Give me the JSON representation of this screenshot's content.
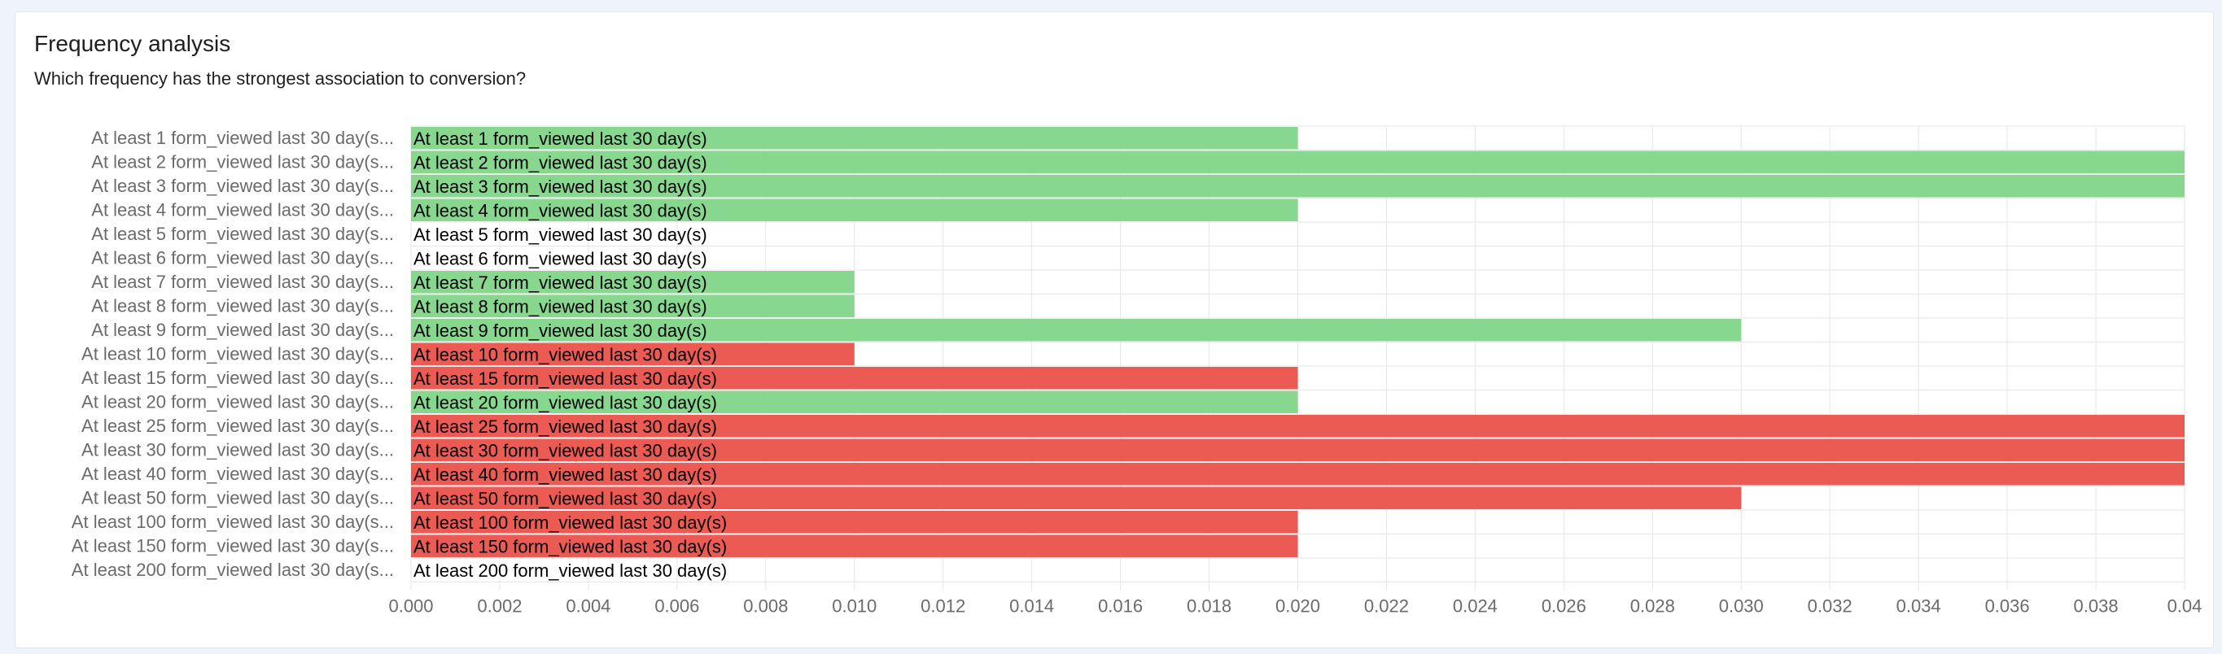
{
  "card": {
    "title": "Frequency analysis",
    "subtitle": "Which frequency has the strongest association to conversion?"
  },
  "colors": {
    "positive": "#88d78f",
    "negative": "#ec5a54",
    "grid": "#e6e6e6",
    "axis_text": "#6b6b6b",
    "bar_label": "#000000"
  },
  "chart_data": {
    "type": "bar",
    "orientation": "horizontal",
    "title": "",
    "xlabel": "",
    "ylabel": "",
    "xlim": [
      0,
      0.04
    ],
    "grid": true,
    "x_ticks": [
      "0.000",
      "0.002",
      "0.004",
      "0.006",
      "0.008",
      "0.010",
      "0.012",
      "0.014",
      "0.016",
      "0.018",
      "0.020",
      "0.022",
      "0.024",
      "0.026",
      "0.028",
      "0.030",
      "0.032",
      "0.034",
      "0.036",
      "0.038",
      "0.04"
    ],
    "categories": [
      "At least 1 form_viewed last 30 day(s)",
      "At least 2 form_viewed last 30 day(s)",
      "At least 3 form_viewed last 30 day(s)",
      "At least 4 form_viewed last 30 day(s)",
      "At least 5 form_viewed last 30 day(s)",
      "At least 6 form_viewed last 30 day(s)",
      "At least 7 form_viewed last 30 day(s)",
      "At least 8 form_viewed last 30 day(s)",
      "At least 9 form_viewed last 30 day(s)",
      "At least 10 form_viewed last 30 day(s)",
      "At least 15 form_viewed last 30 day(s)",
      "At least 20 form_viewed last 30 day(s)",
      "At least 25 form_viewed last 30 day(s)",
      "At least 30 form_viewed last 30 day(s)",
      "At least 40 form_viewed last 30 day(s)",
      "At least 50 form_viewed last 30 day(s)",
      "At least 100 form_viewed last 30 day(s)",
      "At least 150 form_viewed last 30 day(s)",
      "At least 200 form_viewed last 30 day(s)"
    ],
    "axis_labels": [
      "At least 1 form_viewed last 30 day(s...",
      "At least 2 form_viewed last 30 day(s...",
      "At least 3 form_viewed last 30 day(s...",
      "At least 4 form_viewed last 30 day(s...",
      "At least 5 form_viewed last 30 day(s...",
      "At least 6 form_viewed last 30 day(s...",
      "At least 7 form_viewed last 30 day(s...",
      "At least 8 form_viewed last 30 day(s...",
      "At least 9 form_viewed last 30 day(s...",
      "At least 10 form_viewed last 30 day(s...",
      "At least 15 form_viewed last 30 day(s...",
      "At least 20 form_viewed last 30 day(s...",
      "At least 25 form_viewed last 30 day(s...",
      "At least 30 form_viewed last 30 day(s...",
      "At least 40 form_viewed last 30 day(s...",
      "At least 50 form_viewed last 30 day(s...",
      "At least 100 form_viewed last 30 day(s...",
      "At least 150 form_viewed last 30 day(s...",
      "At least 200 form_viewed last 30 day(s..."
    ],
    "values": [
      0.02,
      0.04,
      0.04,
      0.02,
      0,
      0,
      0.01,
      0.01,
      0.03,
      0.01,
      0.02,
      0.02,
      0.04,
      0.04,
      0.04,
      0.03,
      0.02,
      0.02,
      0
    ],
    "directions": [
      "positive",
      "positive",
      "positive",
      "positive",
      "none",
      "none",
      "positive",
      "positive",
      "positive",
      "negative",
      "negative",
      "positive",
      "negative",
      "negative",
      "negative",
      "negative",
      "negative",
      "negative",
      "none"
    ]
  }
}
